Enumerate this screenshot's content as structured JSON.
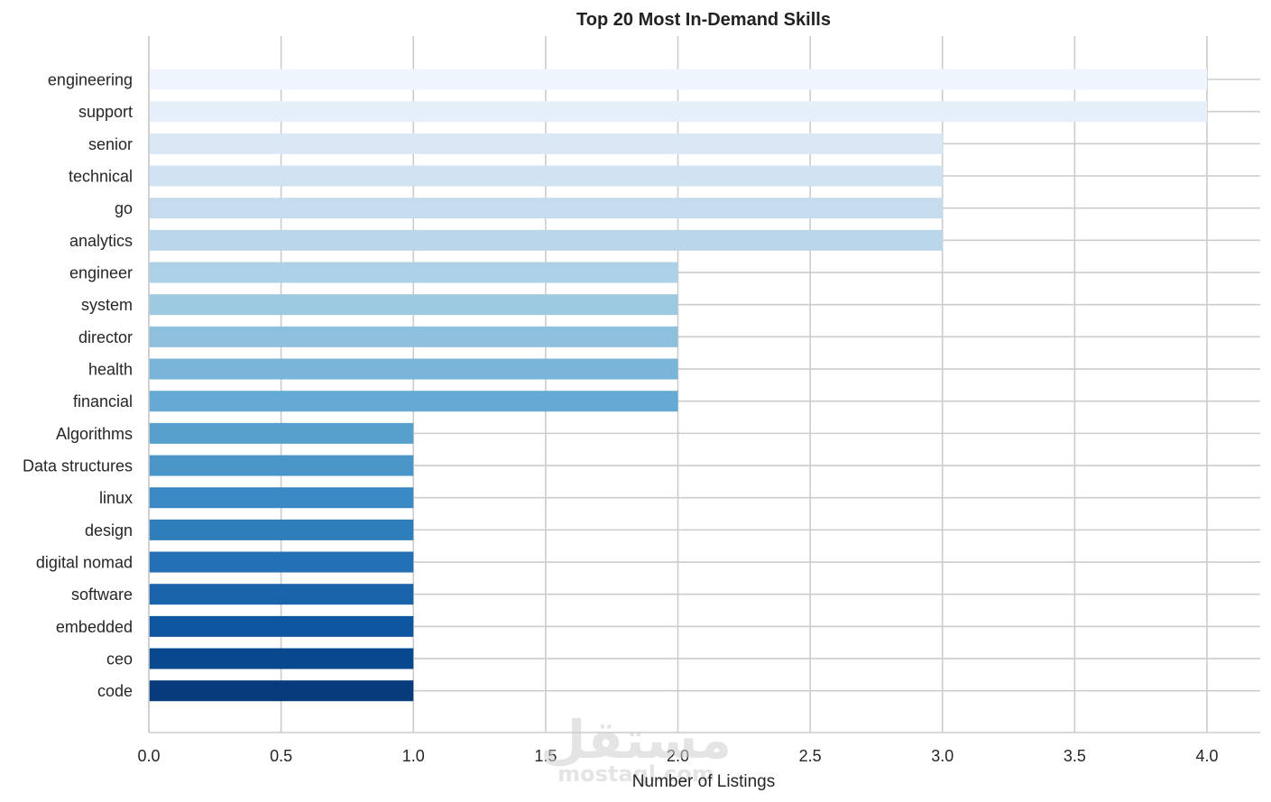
{
  "chart_data": {
    "type": "bar",
    "orientation": "horizontal",
    "title": "Top 20 Most In-Demand Skills",
    "xlabel": "Number of Listings",
    "ylabel": "",
    "xlim": [
      0,
      4.2
    ],
    "xticks": [
      0.0,
      0.5,
      1.0,
      1.5,
      2.0,
      2.5,
      3.0,
      3.5,
      4.0
    ],
    "xtick_labels": [
      "0.0",
      "0.5",
      "1.0",
      "1.5",
      "2.0",
      "2.5",
      "3.0",
      "3.5",
      "4.0"
    ],
    "grid": true,
    "categories": [
      "engineering",
      "support",
      "senior",
      "technical",
      "go",
      "analytics",
      "engineer",
      "system",
      "director",
      "health",
      "financial",
      "Algorithms",
      "Data structures",
      "linux",
      "design",
      "digital nomad",
      "software",
      "embedded",
      "ceo",
      "code"
    ],
    "values": [
      4,
      4,
      3,
      3,
      3,
      3,
      2,
      2,
      2,
      2,
      2,
      1,
      1,
      1,
      1,
      1,
      1,
      1,
      1,
      1
    ],
    "colors": [
      "#eff5fd",
      "#e5eff9",
      "#dae8f5",
      "#d1e2f3",
      "#c7dbef",
      "#bad6eb",
      "#acd0e6",
      "#9ecae1",
      "#8cc0dd",
      "#78b5d9",
      "#65aad4",
      "#57a0ce",
      "#4a96c9",
      "#3b89c3",
      "#2f7ebc",
      "#2470b4",
      "#1963aa",
      "#0e56a0",
      "#08488e",
      "#083b7c"
    ],
    "colormap": "Blues"
  },
  "watermark": {
    "logo_text": "مستقل",
    "site_text": "mostaql.com"
  }
}
